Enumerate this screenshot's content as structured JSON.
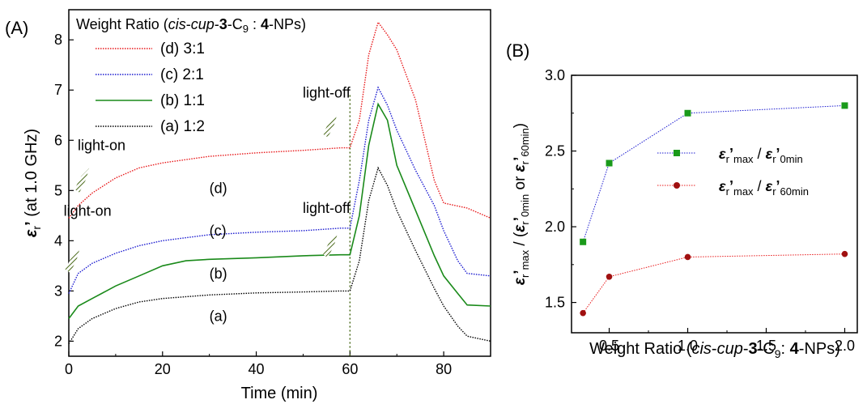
{
  "chart_data": [
    {
      "panel_label": "(A)",
      "type": "line",
      "xlabel": "Time (min)",
      "ylabel": {
        "epsilon": "ε",
        "sub": "r",
        "prime": "’",
        "rest": " (at 1.0 GHz)"
      },
      "xlim": [
        0,
        90
      ],
      "ylim": [
        1.7,
        8.6
      ],
      "xticks": [
        "0",
        "20",
        "40",
        "60",
        "80"
      ],
      "yticks": [
        "2",
        "3",
        "4",
        "5",
        "6",
        "7",
        "8"
      ],
      "legend": {
        "title_pre": "Weight Ratio (",
        "title_italic1": "cis",
        "title_dash1": "-",
        "title_italic2": "cup",
        "title_dash2": "-",
        "title_bold1": "3",
        "title_mid": "-C",
        "title_sub": "9",
        "title_colon": " : ",
        "title_bold2": "4",
        "title_end": "-NPs)",
        "entries": [
          "(d) 3:1",
          "(c) 2:1",
          "(b) 1:1",
          "(a) 1:2"
        ]
      },
      "series": [
        {
          "name": "(d) 3:1",
          "color": "#e8191b",
          "style": "dotted",
          "x": [
            0,
            2,
            5,
            10,
            15,
            20,
            30,
            40,
            50,
            58,
            60,
            62,
            64,
            66,
            68,
            70,
            74,
            78,
            80,
            85,
            90
          ],
          "y": [
            4.45,
            4.7,
            4.95,
            5.25,
            5.45,
            5.55,
            5.68,
            5.75,
            5.8,
            5.85,
            5.85,
            6.4,
            7.7,
            8.35,
            8.1,
            7.8,
            6.8,
            5.2,
            4.75,
            4.65,
            4.45
          ]
        },
        {
          "name": "(c) 2:1",
          "color": "#1a1ad0",
          "style": "dotted",
          "x": [
            0,
            2,
            5,
            10,
            15,
            20,
            30,
            40,
            50,
            58,
            60,
            62,
            64,
            66,
            68,
            70,
            74,
            78,
            80,
            83,
            85,
            90
          ],
          "y": [
            2.95,
            3.35,
            3.55,
            3.75,
            3.9,
            4.0,
            4.12,
            4.17,
            4.2,
            4.25,
            4.25,
            5.2,
            6.4,
            7.05,
            6.7,
            6.2,
            5.4,
            4.7,
            4.2,
            3.6,
            3.35,
            3.3
          ]
        },
        {
          "name": "(b) 1:1",
          "color": "#1a8a1a",
          "style": "solid",
          "x": [
            0,
            2,
            5,
            8,
            10,
            15,
            20,
            25,
            30,
            40,
            50,
            58,
            60,
            62,
            64,
            66,
            68,
            70,
            74,
            78,
            80,
            83,
            85,
            90
          ],
          "y": [
            2.45,
            2.7,
            2.85,
            3.0,
            3.1,
            3.3,
            3.5,
            3.6,
            3.63,
            3.66,
            3.7,
            3.72,
            3.72,
            4.5,
            5.9,
            6.72,
            6.4,
            5.5,
            4.6,
            3.7,
            3.3,
            2.95,
            2.72,
            2.7
          ]
        },
        {
          "name": "(a) 1:2",
          "color": "#000000",
          "style": "dotted",
          "x": [
            0,
            2,
            5,
            10,
            15,
            20,
            30,
            40,
            50,
            58,
            60,
            62,
            64,
            66,
            68,
            70,
            74,
            78,
            80,
            83,
            85,
            90
          ],
          "y": [
            1.95,
            2.25,
            2.45,
            2.65,
            2.78,
            2.85,
            2.92,
            2.96,
            2.98,
            3.0,
            3.0,
            3.6,
            4.8,
            5.45,
            5.1,
            4.6,
            3.8,
            3.05,
            2.7,
            2.3,
            2.1,
            2.0
          ]
        }
      ],
      "curve_labels": [
        {
          "text": "(d)",
          "x": 30,
          "y": 4.95
        },
        {
          "text": "(c)",
          "x": 30,
          "y": 4.1
        },
        {
          "text": "(b)",
          "x": 30,
          "y": 3.25
        },
        {
          "text": "(a)",
          "x": 30,
          "y": 2.4
        }
      ],
      "annotations": [
        {
          "text": "light-on",
          "x": 7,
          "y": 5.8
        },
        {
          "text": "light-on",
          "x": 4,
          "y": 4.5
        },
        {
          "text": "light-off",
          "x": 55,
          "y": 6.85
        },
        {
          "text": "light-off",
          "x": 55,
          "y": 4.55
        }
      ],
      "vline_x": 60
    },
    {
      "panel_label": "(B)",
      "type": "line",
      "xlabel_pre": "Weight Ratio (",
      "xlabel_italic1": "cis",
      "xlabel_dash1": "-",
      "xlabel_italic2": "cup",
      "xlabel_dash2": "-",
      "xlabel_bold1": "3",
      "xlabel_mid": "-C",
      "xlabel_sub": "9",
      "xlabel_colon": ": ",
      "xlabel_bold2": "4",
      "xlabel_end": "-NPs)",
      "xlim": [
        0.26,
        2.08
      ],
      "ylim": [
        1.3,
        3.0
      ],
      "xticks": [
        "0.5",
        "1.0",
        "1.5",
        "2.0"
      ],
      "xtick_values": [
        0.5,
        1.0,
        1.5,
        2.0
      ],
      "yticks": [
        "1.5",
        "2.0",
        "2.5",
        "3.0"
      ],
      "ytick_values": [
        1.5,
        2.0,
        2.5,
        3.0
      ],
      "ylabel": {
        "open": " / (",
        "or": " or ",
        "close": ")"
      },
      "series": [
        {
          "name": "max_0min",
          "color": "#1a1ad0",
          "marker": "square",
          "marker_color": "#1a9a1a",
          "x": [
            0.333,
            0.5,
            1.0,
            2.0
          ],
          "y": [
            1.9,
            2.42,
            2.75,
            2.8
          ]
        },
        {
          "name": "max_60min",
          "color": "#e8191b",
          "marker": "circle",
          "marker_color": "#a01010",
          "x": [
            0.333,
            0.5,
            1.0,
            2.0
          ],
          "y": [
            1.43,
            1.67,
            1.8,
            1.82
          ]
        }
      ],
      "legend": {
        "eps": "ε",
        "r": "r",
        "prime": "’",
        "max": "max",
        "slash": " / ",
        "min0": "0min",
        "min60": "60min"
      }
    }
  ]
}
